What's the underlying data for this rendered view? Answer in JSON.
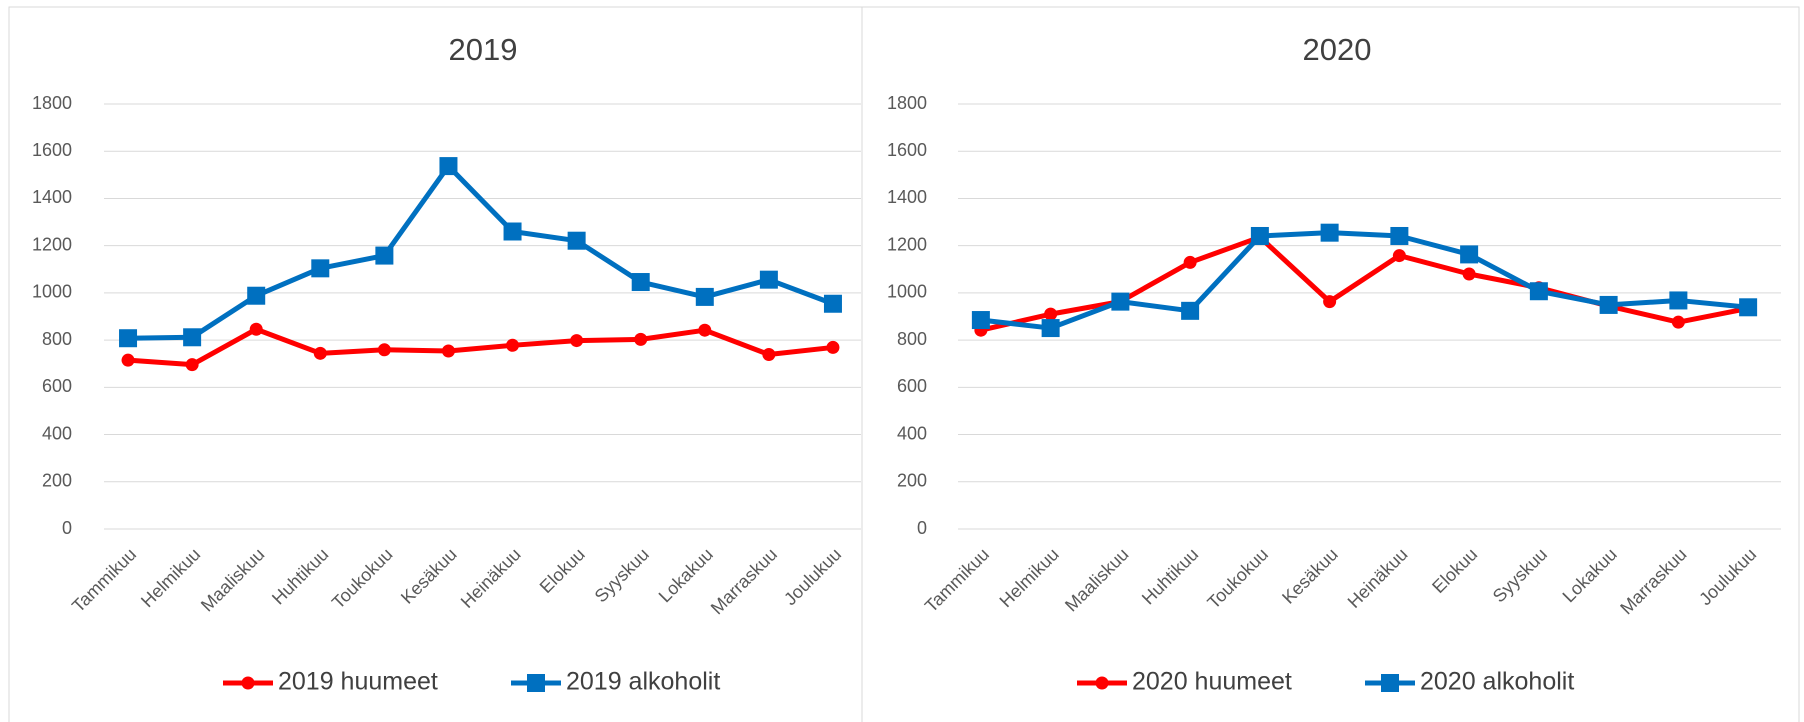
{
  "chart_data": [
    {
      "type": "line",
      "title": "2019",
      "categories": [
        "Tammikuu",
        "Helmikuu",
        "Maaliskuu",
        "Huhtikuu",
        "Toukokuu",
        "Kesäkuu",
        "Heinäkuu",
        "Elokuu",
        "Syyskuu",
        "Lokakuu",
        "Marraskuu",
        "Joulukuu"
      ],
      "series": [
        {
          "name": "2019 huumeet",
          "color": "#ff0000",
          "marker": "circle",
          "values": [
            715,
            696,
            846,
            744,
            759,
            754,
            778,
            798,
            803,
            842,
            739,
            769
          ]
        },
        {
          "name": "2019 alkoholit",
          "color": "#0070c0",
          "marker": "square",
          "values": [
            808,
            812,
            988,
            1104,
            1158,
            1537,
            1260,
            1221,
            1046,
            983,
            1056,
            954
          ]
        }
      ],
      "ylim": [
        0,
        1800
      ],
      "yticks": [
        0,
        200,
        400,
        600,
        800,
        1000,
        1200,
        1400,
        1600,
        1800
      ],
      "grid": true,
      "legend": "bottom"
    },
    {
      "type": "line",
      "title": "2020",
      "categories": [
        "Tammikuu",
        "Helmikuu",
        "Maaliskuu",
        "Huhtikuu",
        "Toukokuu",
        "Kesäkuu",
        "Heinäkuu",
        "Elokuu",
        "Syyskuu",
        "Lokakuu",
        "Marraskuu",
        "Joulukuu"
      ],
      "series": [
        {
          "name": "2020 huumeet",
          "color": "#ff0000",
          "marker": "circle",
          "values": [
            842,
            910,
            963,
            1129,
            1236,
            963,
            1158,
            1080,
            1022,
            944,
            876,
            934
          ]
        },
        {
          "name": "2020 alkoholit",
          "color": "#0070c0",
          "marker": "square",
          "values": [
            885,
            851,
            963,
            924,
            1241,
            1255,
            1241,
            1163,
            1007,
            949,
            968,
            939
          ]
        }
      ],
      "ylim": [
        0,
        1800
      ],
      "yticks": [
        0,
        200,
        400,
        600,
        800,
        1000,
        1200,
        1400,
        1600,
        1800
      ],
      "grid": true,
      "legend": "bottom"
    }
  ]
}
